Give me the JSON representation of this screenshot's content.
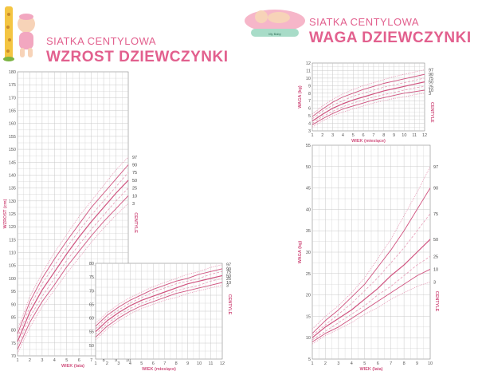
{
  "left": {
    "subtitle": "SIATKA CENTYLOWA",
    "title": "WZROST DZIEWCZYNKI"
  },
  "right": {
    "subtitle": "SIATKA CENTYLOWA",
    "title": "WAGA DZIEWCZYNKI",
    "badge_text": "My Baby"
  },
  "colors": {
    "accent": "#e2608e",
    "curve_main": "#d0527f",
    "curve_light": "#e79ab6",
    "grid": "#c8c8c8"
  },
  "chart_data": [
    {
      "id": "height_years",
      "type": "line",
      "ylabel": "WZROST (cm)",
      "xlabel": "WIEK (lata)",
      "centile_title": "CENTYLE",
      "xlim": [
        1,
        10
      ],
      "ylim": [
        70,
        180
      ],
      "xticks": [
        "1",
        "2",
        "3",
        "4",
        "5",
        "6",
        "7",
        "8",
        "9",
        "10"
      ],
      "yticks": [
        "70",
        "75",
        "80",
        "85",
        "90",
        "95",
        "100",
        "105",
        "110",
        "115",
        "120",
        "125",
        "130",
        "135",
        "140",
        "145",
        "150",
        "155",
        "160",
        "165",
        "170",
        "175",
        "180"
      ],
      "x": [
        1,
        2,
        3,
        4,
        5,
        6,
        7,
        8,
        9,
        10
      ],
      "series": [
        {
          "name": "97",
          "values": [
            80,
            93,
            102,
            110,
            117,
            124,
            130,
            136,
            142,
            147
          ]
        },
        {
          "name": "90",
          "values": [
            78.5,
            91,
            100,
            107.5,
            114.5,
            121,
            127.5,
            133,
            138.5,
            144
          ]
        },
        {
          "name": "75",
          "values": [
            77,
            89,
            98,
            105,
            112,
            118.5,
            124.5,
            130,
            135.5,
            141
          ]
        },
        {
          "name": "50",
          "values": [
            75.5,
            87,
            95.5,
            102.5,
            109.5,
            116,
            122,
            127.5,
            133,
            138
          ]
        },
        {
          "name": "25",
          "values": [
            74,
            85,
            93,
            100,
            107,
            113,
            119,
            124.5,
            130,
            135
          ]
        },
        {
          "name": "10",
          "values": [
            72.5,
            83,
            91,
            97.5,
            104.5,
            110.5,
            116.5,
            122,
            127,
            132
          ]
        },
        {
          "name": "3",
          "values": [
            71,
            81,
            89,
            95.5,
            102,
            108,
            114,
            119.5,
            124.5,
            129
          ]
        }
      ]
    },
    {
      "id": "height_months",
      "type": "line",
      "xlabel": "WIEK (miesiące)",
      "centile_title": "CENTYLE",
      "xlim": [
        1,
        12
      ],
      "ylim": [
        45,
        80
      ],
      "xticks": [
        "1",
        "2",
        "3",
        "4",
        "5",
        "6",
        "7",
        "8",
        "9",
        "10",
        "11",
        "12"
      ],
      "yticks": [
        "50",
        "55",
        "60",
        "65",
        "70",
        "75",
        "80"
      ],
      "x": [
        1,
        2,
        3,
        4,
        5,
        6,
        7,
        8,
        9,
        10,
        11,
        12
      ],
      "series": [
        {
          "name": "97",
          "values": [
            58,
            62,
            65,
            67.5,
            69.5,
            71.5,
            73,
            74.5,
            76,
            77,
            78.5,
            79.5
          ]
        },
        {
          "name": "90",
          "values": [
            57,
            61,
            64,
            66.5,
            68.5,
            70.5,
            72,
            73.5,
            74.5,
            76,
            77,
            78
          ]
        },
        {
          "name": "75",
          "values": [
            56,
            60,
            63,
            65.5,
            67.5,
            69.5,
            71,
            72.5,
            73.5,
            74.5,
            76,
            77
          ]
        },
        {
          "name": "50",
          "values": [
            55,
            59,
            62,
            64.5,
            66.5,
            68,
            69.5,
            71,
            72.5,
            73.5,
            74.5,
            75.5
          ]
        },
        {
          "name": "25",
          "values": [
            54,
            58,
            61,
            63.5,
            65.5,
            67,
            68.5,
            70,
            71,
            72,
            73.5,
            74.5
          ]
        },
        {
          "name": "10",
          "values": [
            53,
            57,
            60,
            62.5,
            64.5,
            66,
            67.5,
            69,
            70,
            71,
            72,
            73
          ]
        },
        {
          "name": "3",
          "values": [
            52,
            56,
            59,
            61.5,
            63.5,
            65,
            66.5,
            67.5,
            69,
            70,
            71,
            72
          ]
        }
      ]
    },
    {
      "id": "weight_months",
      "type": "line",
      "ylabel": "WAGA (kg)",
      "xlabel": "WIEK (miesiące)",
      "centile_title": "CENTYLE",
      "xlim": [
        1,
        12
      ],
      "ylim": [
        3,
        12
      ],
      "xticks": [
        "1",
        "2",
        "3",
        "4",
        "5",
        "6",
        "7",
        "8",
        "9",
        "10",
        "11",
        "12"
      ],
      "yticks": [
        "3",
        "4",
        "5",
        "6",
        "7",
        "8",
        "9",
        "10",
        "11",
        "12"
      ],
      "x": [
        1,
        2,
        3,
        4,
        5,
        6,
        7,
        8,
        9,
        10,
        11,
        12
      ],
      "series": [
        {
          "name": "97",
          "values": [
            5.2,
            6.3,
            7.2,
            7.9,
            8.5,
            9.0,
            9.4,
            9.8,
            10.2,
            10.5,
            10.8,
            11.1
          ]
        },
        {
          "name": "90",
          "values": [
            4.9,
            5.9,
            6.8,
            7.5,
            8.0,
            8.5,
            8.9,
            9.3,
            9.6,
            9.9,
            10.2,
            10.5
          ]
        },
        {
          "name": "75",
          "values": [
            4.6,
            5.6,
            6.4,
            7.0,
            7.6,
            8.0,
            8.4,
            8.8,
            9.1,
            9.4,
            9.7,
            10.0
          ]
        },
        {
          "name": "50",
          "values": [
            4.3,
            5.2,
            6.0,
            6.6,
            7.1,
            7.5,
            7.9,
            8.3,
            8.6,
            8.9,
            9.2,
            9.5
          ]
        },
        {
          "name": "25",
          "values": [
            4.0,
            4.9,
            5.6,
            6.2,
            6.7,
            7.1,
            7.5,
            7.8,
            8.1,
            8.4,
            8.7,
            8.9
          ]
        },
        {
          "name": "10",
          "values": [
            3.8,
            4.6,
            5.3,
            5.9,
            6.3,
            6.7,
            7.1,
            7.4,
            7.7,
            8.0,
            8.2,
            8.4
          ]
        },
        {
          "name": "3",
          "values": [
            3.5,
            4.3,
            5.0,
            5.5,
            5.9,
            6.3,
            6.7,
            7.0,
            7.3,
            7.5,
            7.8,
            8.0
          ]
        }
      ]
    },
    {
      "id": "weight_years",
      "type": "line",
      "ylabel": "WAGA (kg)",
      "xlabel": "WIEK (lata)",
      "centile_title": "CENTYLE",
      "xlim": [
        1,
        10
      ],
      "ylim": [
        5,
        55
      ],
      "xticks": [
        "1",
        "2",
        "3",
        "4",
        "5",
        "6",
        "7",
        "8",
        "9",
        "10"
      ],
      "yticks": [
        "5",
        "10",
        "15",
        "20",
        "25",
        "30",
        "35",
        "40",
        "45",
        "50",
        "55"
      ],
      "x": [
        1,
        2,
        3,
        4,
        5,
        6,
        7,
        8,
        9,
        10
      ],
      "series": [
        {
          "name": "97",
          "values": [
            12,
            15,
            17.5,
            20.5,
            24,
            28.5,
            33,
            38.5,
            44,
            50
          ]
        },
        {
          "name": "90",
          "values": [
            11,
            14,
            16.5,
            19.5,
            22.5,
            26.5,
            30.5,
            35,
            40,
            45
          ]
        },
        {
          "name": "75",
          "values": [
            10.5,
            13,
            15.5,
            18,
            21,
            24,
            27.5,
            31,
            35,
            39
          ]
        },
        {
          "name": "50",
          "values": [
            10,
            12.5,
            14.5,
            16.5,
            19,
            21.5,
            24.5,
            27,
            30,
            33
          ]
        },
        {
          "name": "25",
          "values": [
            9.5,
            11.5,
            13.5,
            15.5,
            17.5,
            20,
            22,
            24.5,
            27,
            29
          ]
        },
        {
          "name": "10",
          "values": [
            9,
            11,
            12.5,
            14.5,
            16.5,
            18.5,
            20.5,
            22.5,
            24.5,
            26
          ]
        },
        {
          "name": "3",
          "values": [
            8.5,
            10.5,
            12,
            13.5,
            15.5,
            17,
            19,
            20.5,
            22,
            23
          ]
        }
      ]
    }
  ]
}
